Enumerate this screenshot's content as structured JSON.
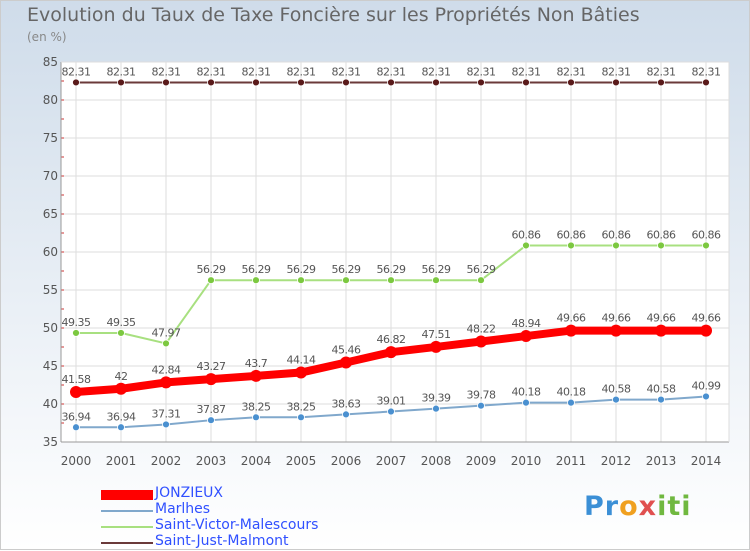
{
  "chart_data": {
    "type": "line",
    "title": "Evolution du Taux de Taxe Foncière sur les Propriétés Non Bâties",
    "ylabel": "(en %)",
    "xlabel": "",
    "ylim": [
      35,
      85
    ],
    "yticks": [
      35,
      40,
      45,
      50,
      55,
      60,
      65,
      70,
      75,
      80,
      85
    ],
    "categories": [
      "2000",
      "2001",
      "2002",
      "2003",
      "2004",
      "2005",
      "2006",
      "2007",
      "2008",
      "2009",
      "2010",
      "2011",
      "2012",
      "2013",
      "2014"
    ],
    "series": [
      {
        "name": "Saint-Just-Malmont",
        "color": "#6b3a3a",
        "marker": "#5a1a1a",
        "values": [
          82.31,
          82.31,
          82.31,
          82.31,
          82.31,
          82.31,
          82.31,
          82.31,
          82.31,
          82.31,
          82.31,
          82.31,
          82.31,
          82.31,
          82.31
        ],
        "labels": [
          "82.31",
          "82.31",
          "82.31",
          "82.31",
          "82.31",
          "82.31",
          "82.31",
          "82.31",
          "82.31",
          "82.31",
          "82.31",
          "82.31",
          "82.31",
          "82.31",
          "82.31"
        ]
      },
      {
        "name": "Saint-Victor-Malescours",
        "color": "#a8e080",
        "marker": "#7cc840",
        "values": [
          49.35,
          49.35,
          47.97,
          56.29,
          56.29,
          56.29,
          56.29,
          56.29,
          56.29,
          56.29,
          60.86,
          60.86,
          60.86,
          60.86,
          60.86
        ],
        "labels": [
          "49.35",
          "49.35",
          "47.97",
          "56.29",
          "56.29",
          "56.29",
          "56.29",
          "56.29",
          "56.29",
          "56.29",
          "60.86",
          "60.86",
          "60.86",
          "60.86",
          "60.86"
        ]
      },
      {
        "name": "Marlhes",
        "color": "#80a8cc",
        "marker": "#4a90d0",
        "values": [
          36.94,
          36.94,
          37.31,
          37.87,
          38.25,
          38.25,
          38.63,
          39.01,
          39.39,
          39.78,
          40.18,
          40.18,
          40.58,
          40.58,
          40.99
        ],
        "labels": [
          "36.94",
          "36.94",
          "37.31",
          "37.87",
          "38.25",
          "38.25",
          "38.63",
          "39.01",
          "39.39",
          "39.78",
          "40.18",
          "40.18",
          "40.58",
          "40.58",
          "40.99"
        ]
      },
      {
        "name": "JONZIEUX",
        "color": "#ff0000",
        "marker": "#ff0000",
        "values": [
          41.58,
          42.0,
          42.84,
          43.27,
          43.7,
          44.14,
          45.46,
          46.82,
          47.51,
          48.22,
          48.94,
          49.66,
          49.66,
          49.66,
          49.66
        ],
        "labels": [
          "41.58",
          "42",
          "42.84",
          "43.27",
          "43.7",
          "44.14",
          "45.46",
          "46.82",
          "47.51",
          "48.22",
          "48.94",
          "49.66",
          "49.66",
          "49.66",
          "49.66"
        ]
      }
    ],
    "legend": [
      "JONZIEUX",
      "Marlhes",
      "Saint-Victor-Malescours",
      "Saint-Just-Malmont"
    ],
    "legend_position": "bottom-left"
  },
  "logo": {
    "part1": "Pr",
    "part2": "o",
    "part3": "x",
    "part4": "iti"
  }
}
